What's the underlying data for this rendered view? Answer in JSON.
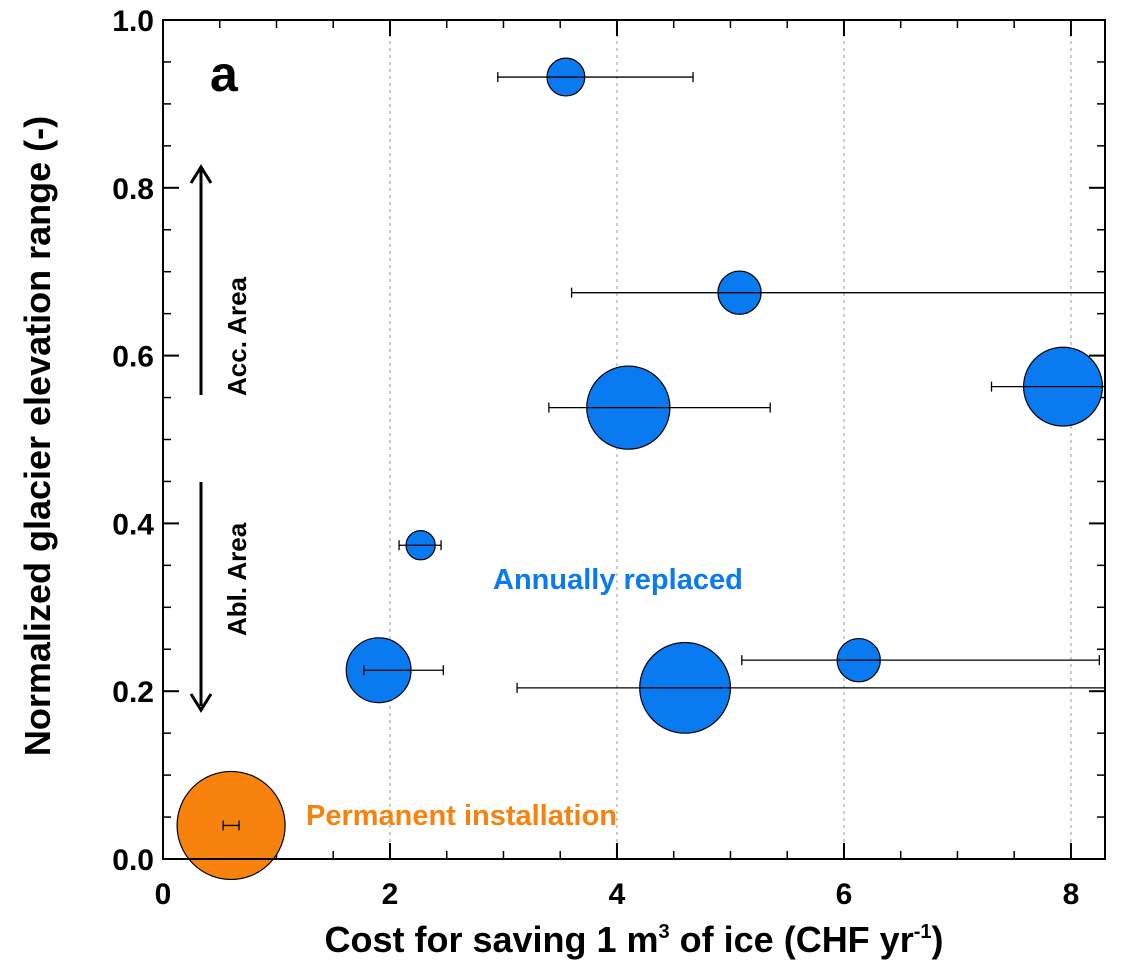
{
  "chart_data": {
    "type": "scatter",
    "panel_label": "a",
    "xlabel": {
      "pre": "Cost for saving 1 m",
      "sup1": "3",
      "mid": " of ice (CHF yr",
      "sup2": "-1",
      "post": ")"
    },
    "ylabel": "Normalized glacier elevation range (-)",
    "xlim": [
      0,
      8.3
    ],
    "ylim": [
      0,
      1.0
    ],
    "xticks": [
      "0",
      "2",
      "4",
      "6",
      "8"
    ],
    "yticks": [
      "0.0",
      "0.2",
      "0.4",
      "0.6",
      "0.8",
      "1.0"
    ],
    "grid": "vertical dotted",
    "annotations": {
      "acc_area": "Acc. Area",
      "abl_area": "Abl. Area",
      "annually_label": "Annually replaced",
      "permanent_label": "Permanent installation"
    },
    "colors": {
      "annually": "#0a7af0",
      "permanent": "#f7820e"
    },
    "series": [
      {
        "name": "Annually replaced",
        "points": [
          {
            "x": 3.55,
            "y": 0.932,
            "xerr": [
              2.95,
              4.67
            ],
            "size": 0.35
          },
          {
            "x": 5.08,
            "y": 0.675,
            "xerr": [
              3.6,
              8.3
            ],
            "size": 0.4
          },
          {
            "x": 7.93,
            "y": 0.563,
            "xerr": [
              7.3,
              8.3
            ],
            "size": 0.73
          },
          {
            "x": 4.1,
            "y": 0.538,
            "xerr": [
              3.4,
              5.35
            ],
            "size": 0.77
          },
          {
            "x": 2.27,
            "y": 0.374,
            "xerr": [
              2.08,
              2.45
            ],
            "size": 0.27
          },
          {
            "x": 1.9,
            "y": 0.225,
            "xerr": [
              1.77,
              2.47
            ],
            "size": 0.6
          },
          {
            "x": 6.13,
            "y": 0.237,
            "xerr": [
              5.1,
              8.25
            ],
            "size": 0.4
          },
          {
            "x": 4.6,
            "y": 0.204,
            "xerr": [
              3.12,
              8.3
            ],
            "size": 0.84
          }
        ]
      },
      {
        "name": "Permanent installation",
        "points": [
          {
            "x": 0.6,
            "y": 0.04,
            "xerr": [
              0.53,
              0.67
            ],
            "size": 1.0
          }
        ]
      }
    ]
  }
}
